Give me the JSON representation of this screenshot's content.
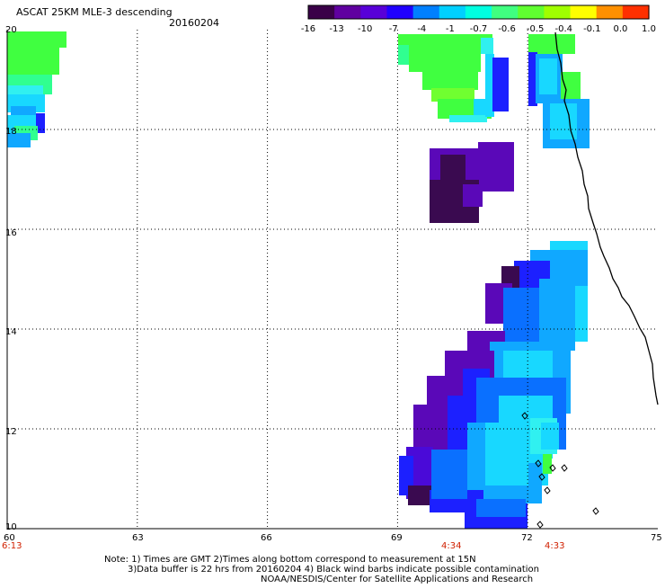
{
  "header": {
    "title": "ASCAT 25KM MLE-3 descending",
    "date": "20160204"
  },
  "colorbar": {
    "labels": [
      "-16",
      "-13",
      "-10",
      "-7",
      "-4",
      "-1",
      "-0.7",
      "-0.6",
      "-0.5",
      "-0.4",
      "-0.1",
      "0.0",
      "1.0"
    ],
    "colors": [
      "#3a0048",
      "#6000a0",
      "#5800d8",
      "#2000ff",
      "#0080ff",
      "#00d0ff",
      "#00ffe0",
      "#40ff80",
      "#60ff30",
      "#a0ff00",
      "#ffff00",
      "#ff9000",
      "#ff3000"
    ]
  },
  "axes": {
    "lon_labels": [
      "60",
      "63",
      "66",
      "69",
      "72",
      "75"
    ],
    "lat_labels": [
      "20",
      "18",
      "16",
      "14",
      "12",
      "10"
    ],
    "lon_range": [
      60,
      75
    ],
    "lat_range": [
      10,
      20
    ],
    "grid": "dotted"
  },
  "times": [
    "6:13",
    "4:34",
    "4:33"
  ],
  "notes": {
    "line1": "Note: 1) Times are GMT 2)Times along bottom correspond to measurement at 15N",
    "line2": "3)Data buffer is 22 hrs from 20160204 4) Black wind barbs indicate possible contamination",
    "line3": "NOAA/NESDIS/Center for Satellite Applications and Research"
  }
}
